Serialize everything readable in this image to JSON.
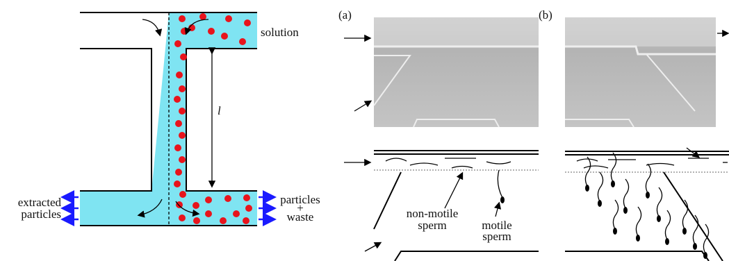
{
  "left_panel": {
    "solution": "solution",
    "length": "l",
    "extracted": [
      "extracted",
      "particles"
    ],
    "outlet": [
      "particles",
      "+",
      "waste"
    ]
  },
  "panel_a": {
    "label": "(a)",
    "non_motile": [
      "non-motile",
      "sperm"
    ],
    "motile": [
      "motile",
      "sperm"
    ]
  },
  "panel_b": {
    "label": "(b)"
  }
}
